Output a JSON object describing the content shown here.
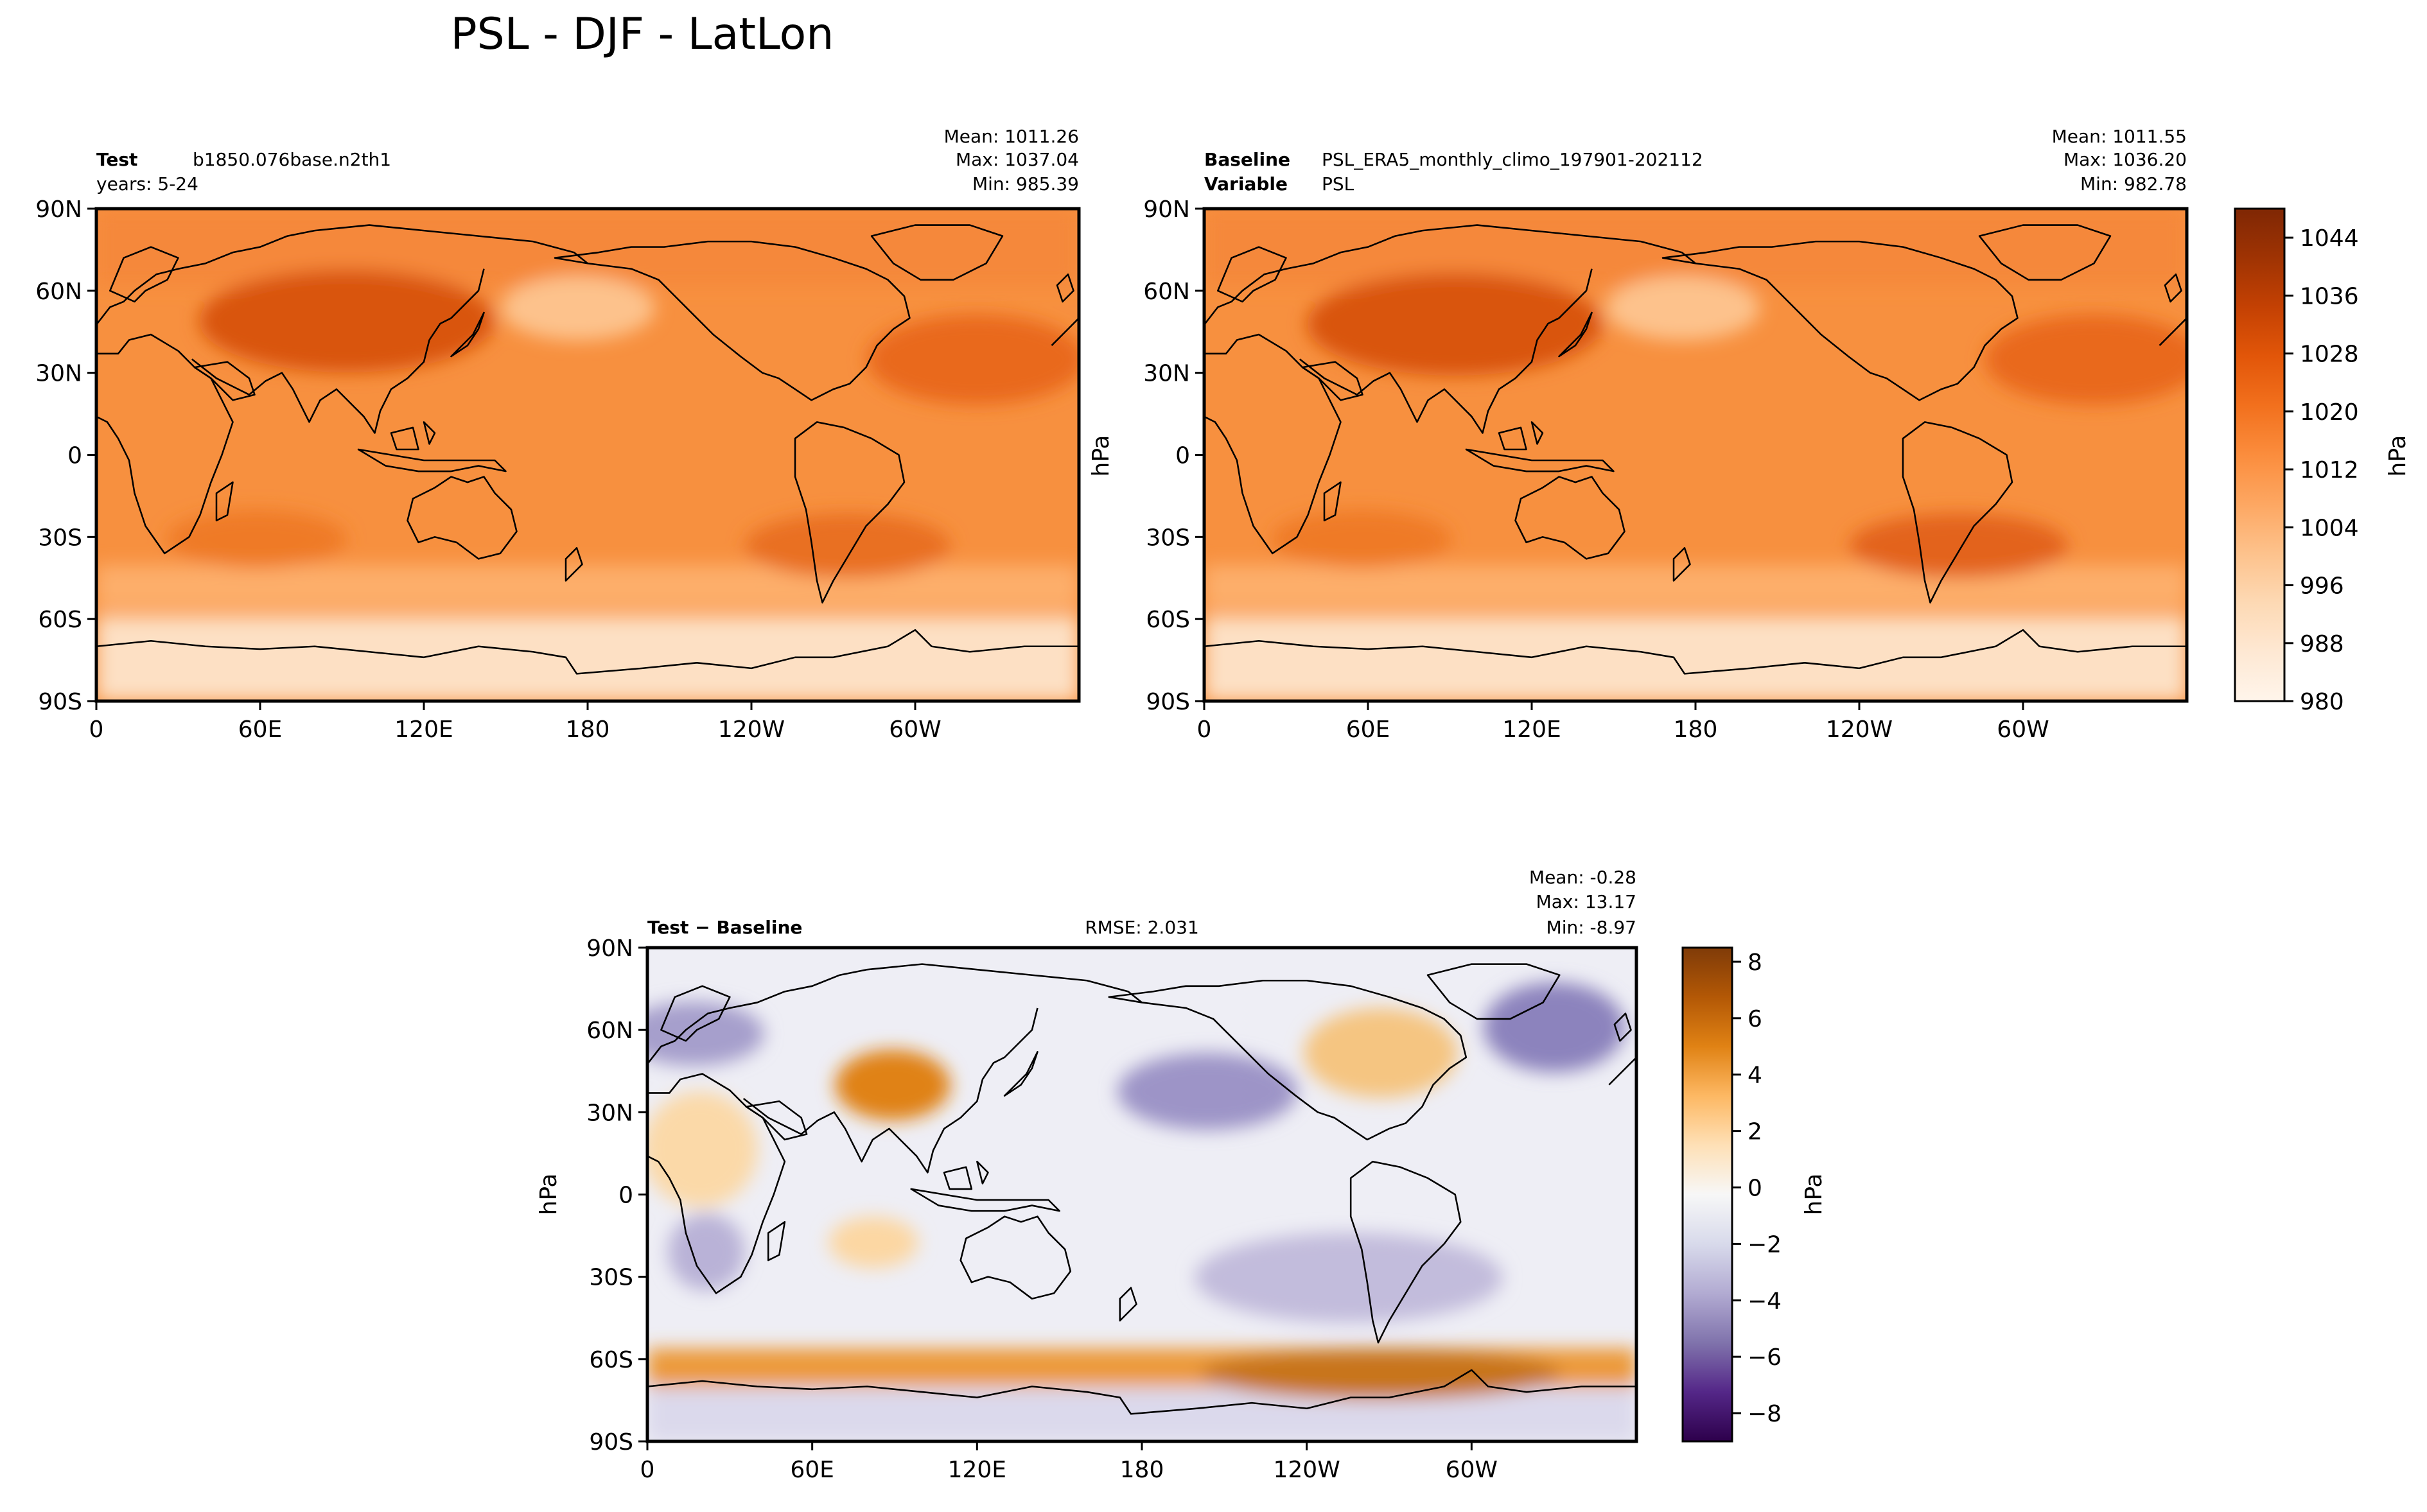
{
  "figure": {
    "title": "PSL - DJF - LatLon"
  },
  "colors": {
    "ocean_contours": "#000000",
    "frame": "#000000",
    "oranges_ramp": [
      "#fff5eb",
      "#fee8d3",
      "#fdd9b4",
      "#fdc28c",
      "#fda762",
      "#fb8d3d",
      "#f2701d",
      "#e25609",
      "#c44103",
      "#9f3303",
      "#7f2704"
    ],
    "puor_ramp": [
      "#2d004b",
      "#542788",
      "#8073ac",
      "#b2abd2",
      "#d8daeb",
      "#f7f7f7",
      "#fee0b6",
      "#fdb863",
      "#e08214",
      "#b35806",
      "#7f3b08"
    ]
  },
  "chart_data": [
    {
      "type": "heatmap",
      "panel": "test",
      "header_left": [
        {
          "label": "Test",
          "value": "b1850.076base.n2th1"
        },
        {
          "label": "",
          "value": "years: 5-24"
        }
      ],
      "header_center": "",
      "stats": [
        "Mean: 1011.26",
        "Max: 1037.04",
        "Min: 985.39"
      ],
      "ylabel": "",
      "ytick_labels": [
        "90N",
        "60N",
        "30N",
        "0",
        "30S",
        "60S",
        "90S"
      ],
      "xtick_labels": [
        "0",
        "60E",
        "120E",
        "180",
        "120W",
        "60W"
      ],
      "x_range_deg_east": [
        0,
        360
      ],
      "y_range_deg_north": [
        -90,
        90
      ],
      "field_range_hPa": [
        985.39,
        1037.04
      ],
      "colormap": "oranges"
    },
    {
      "type": "heatmap",
      "panel": "baseline",
      "header_left": [
        {
          "label": "Baseline",
          "value": "PSL_ERA5_monthly_climo_197901-202112"
        },
        {
          "label": "Variable",
          "value": "PSL"
        }
      ],
      "header_center": "",
      "stats": [
        "Mean: 1011.55",
        "Max: 1036.20",
        "Min: 982.78"
      ],
      "ylabel": "hPa",
      "ytick_labels": [
        "90N",
        "60N",
        "30N",
        "0",
        "30S",
        "60S",
        "90S"
      ],
      "xtick_labels": [
        "0",
        "60E",
        "120E",
        "180",
        "120W",
        "60W"
      ],
      "x_range_deg_east": [
        0,
        360
      ],
      "y_range_deg_north": [
        -90,
        90
      ],
      "field_range_hPa": [
        982.78,
        1036.2
      ],
      "colormap": "oranges"
    },
    {
      "type": "heatmap",
      "panel": "difference",
      "header_left": [
        {
          "label": "Test − Baseline",
          "value": ""
        }
      ],
      "header_center": "RMSE: 2.031",
      "stats": [
        "Mean: -0.28",
        "Max: 13.17",
        "Min: -8.97"
      ],
      "ylabel": "hPa",
      "ytick_labels": [
        "90N",
        "60N",
        "30N",
        "0",
        "30S",
        "60S",
        "90S"
      ],
      "xtick_labels": [
        "0",
        "60E",
        "120E",
        "180",
        "120W",
        "60W"
      ],
      "x_range_deg_east": [
        0,
        360
      ],
      "y_range_deg_north": [
        -90,
        90
      ],
      "field_range_hPa": [
        -8.97,
        13.17
      ],
      "colormap": "puor"
    }
  ],
  "colorbars": [
    {
      "name": "abs-colorbar",
      "label": "hPa",
      "range": [
        980,
        1048
      ],
      "tick_values": [
        980,
        988,
        996,
        1004,
        1012,
        1020,
        1028,
        1036,
        1044
      ],
      "tick_labels": [
        "980",
        "988",
        "996",
        "1004",
        "1012",
        "1020",
        "1028",
        "1036",
        "1044"
      ],
      "colormap": "oranges"
    },
    {
      "name": "diff-colorbar",
      "label": "hPa",
      "range": [
        -9,
        8.5
      ],
      "tick_values": [
        -8,
        -6,
        -4,
        -2,
        0,
        2,
        4,
        6,
        8
      ],
      "tick_labels": [
        "−8",
        "−6",
        "−4",
        "−2",
        "0",
        "2",
        "4",
        "6",
        "8"
      ],
      "colormap": "puor"
    }
  ]
}
